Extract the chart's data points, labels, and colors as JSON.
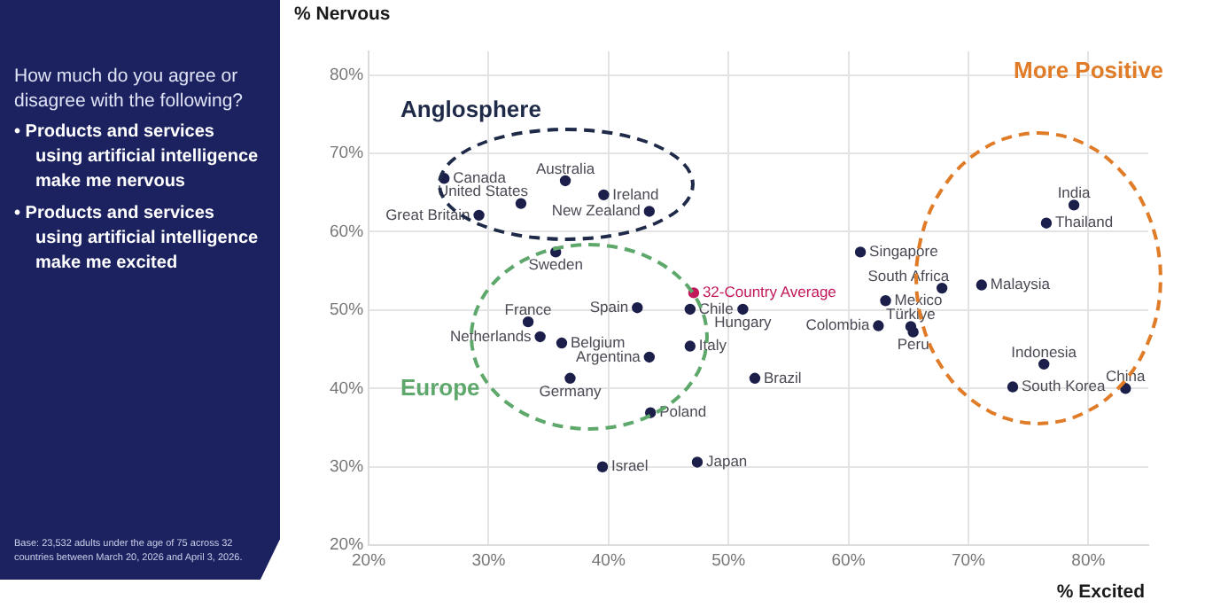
{
  "chart_data": {
    "type": "scatter",
    "title": "How much do you agree or disagree with the following?",
    "xlabel": "% Excited",
    "ylabel": "% Nervous",
    "annotations": [
      "•  Products and services using artificial intelligence make me nervous",
      "•  Products and services using artificial intelligence make me excited",
      "Base: 23,532 adults under the age of 75 across 32 countries between March 20, 2026 and April 3, 2026.",
      "Anglosphere",
      "Europe",
      "More Positive"
    ],
    "xlim": [
      20,
      85
    ],
    "ylim": [
      20,
      83
    ],
    "xticks": [
      {
        "value": 20,
        "label": "20%"
      },
      {
        "value": 30,
        "label": "30%"
      },
      {
        "value": 40,
        "label": "40%"
      },
      {
        "value": 50,
        "label": "50%"
      },
      {
        "value": 60,
        "label": "60%"
      },
      {
        "value": 70,
        "label": "70%"
      },
      {
        "value": 80,
        "label": "80%"
      }
    ],
    "yticks": [
      {
        "value": 20,
        "label": "20%"
      },
      {
        "value": 30,
        "label": "30%"
      },
      {
        "value": 40,
        "label": "40%"
      },
      {
        "value": 50,
        "label": "50%"
      },
      {
        "value": 60,
        "label": "60%"
      },
      {
        "value": 70,
        "label": "70%"
      },
      {
        "value": 80,
        "label": "80%"
      }
    ],
    "grid": true,
    "legend": false,
    "marker": "circle",
    "series": [
      {
        "name": "Canada",
        "color": "#1b1f4a",
        "x": [
          26.3
        ],
        "values": [
          66.8
        ]
      },
      {
        "name": "Australia",
        "color": "#1b1f4a",
        "x": [
          36.4
        ],
        "values": [
          66.5
        ]
      },
      {
        "name": "United States",
        "color": "#1b1f4a",
        "x": [
          32.7
        ],
        "values": [
          63.6
        ]
      },
      {
        "name": "Ireland",
        "color": "#1b1f4a",
        "x": [
          39.6
        ],
        "values": [
          64.7
        ]
      },
      {
        "name": "New Zealand",
        "color": "#1b1f4a",
        "x": [
          43.4
        ],
        "values": [
          62.6
        ]
      },
      {
        "name": "Great Britain",
        "color": "#1b1f4a",
        "x": [
          29.2
        ],
        "values": [
          62.1
        ]
      },
      {
        "name": "Sweden",
        "color": "#1b1f4a",
        "x": [
          35.6
        ],
        "values": [
          57.4
        ]
      },
      {
        "name": "Spain",
        "color": "#1b1f4a",
        "x": [
          42.4
        ],
        "values": [
          50.3
        ]
      },
      {
        "name": "32-Country Average",
        "color": "#c2185b",
        "x": [
          47.1
        ],
        "values": [
          52.2
        ]
      },
      {
        "name": "Chile",
        "color": "#1b1f4a",
        "x": [
          46.8
        ],
        "values": [
          50.1
        ]
      },
      {
        "name": "Hungary",
        "color": "#1b1f4a",
        "x": [
          51.2
        ],
        "values": [
          50.1
        ]
      },
      {
        "name": "France",
        "color": "#1b1f4a",
        "x": [
          33.3
        ],
        "values": [
          48.5
        ]
      },
      {
        "name": "Netherlands",
        "color": "#1b1f4a",
        "x": [
          34.3
        ],
        "values": [
          46.6
        ]
      },
      {
        "name": "Belgium",
        "color": "#1b1f4a",
        "x": [
          36.1
        ],
        "values": [
          45.8
        ]
      },
      {
        "name": "Argentina",
        "color": "#1b1f4a",
        "x": [
          43.4
        ],
        "values": [
          44.0
        ]
      },
      {
        "name": "Italy",
        "color": "#1b1f4a",
        "x": [
          46.8
        ],
        "values": [
          45.4
        ]
      },
      {
        "name": "Germany",
        "color": "#1b1f4a",
        "x": [
          36.8
        ],
        "values": [
          41.3
        ]
      },
      {
        "name": "Poland",
        "color": "#1b1f4a",
        "x": [
          43.5
        ],
        "values": [
          36.9
        ]
      },
      {
        "name": "Israel",
        "color": "#1b1f4a",
        "x": [
          39.5
        ],
        "values": [
          30.0
        ]
      },
      {
        "name": "Japan",
        "color": "#1b1f4a",
        "x": [
          47.4
        ],
        "values": [
          30.6
        ]
      },
      {
        "name": "Brazil",
        "color": "#1b1f4a",
        "x": [
          52.2
        ],
        "values": [
          41.3
        ]
      },
      {
        "name": "Singapore",
        "color": "#1b1f4a",
        "x": [
          61.0
        ],
        "values": [
          57.4
        ]
      },
      {
        "name": "South Africa",
        "color": "#1b1f4a",
        "x": [
          67.8
        ],
        "values": [
          52.8
        ]
      },
      {
        "name": "Malaysia",
        "color": "#1b1f4a",
        "x": [
          71.1
        ],
        "values": [
          53.2
        ]
      },
      {
        "name": "Mexico",
        "color": "#1b1f4a",
        "x": [
          63.1
        ],
        "values": [
          51.2
        ]
      },
      {
        "name": "Türkiye",
        "color": "#1b1f4a",
        "x": [
          65.2
        ],
        "values": [
          47.9
        ]
      },
      {
        "name": "Colombia",
        "color": "#1b1f4a",
        "x": [
          62.5
        ],
        "values": [
          48.0
        ]
      },
      {
        "name": "Peru",
        "color": "#1b1f4a",
        "x": [
          65.4
        ],
        "values": [
          47.2
        ]
      },
      {
        "name": "India",
        "color": "#1b1f4a",
        "x": [
          78.8
        ],
        "values": [
          63.4
        ]
      },
      {
        "name": "Thailand",
        "color": "#1b1f4a",
        "x": [
          76.5
        ],
        "values": [
          61.1
        ]
      },
      {
        "name": "Indonesia",
        "color": "#1b1f4a",
        "x": [
          76.3
        ],
        "values": [
          43.1
        ]
      },
      {
        "name": "South Korea",
        "color": "#1b1f4a",
        "x": [
          73.7
        ],
        "values": [
          40.2
        ]
      },
      {
        "name": "China",
        "color": "#1b1f4a",
        "x": [
          83.1
        ],
        "values": [
          40.0
        ]
      }
    ]
  }
}
